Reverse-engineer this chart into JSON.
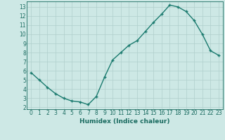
{
  "x": [
    0,
    1,
    2,
    3,
    4,
    5,
    6,
    7,
    8,
    9,
    10,
    11,
    12,
    13,
    14,
    15,
    16,
    17,
    18,
    19,
    20,
    21,
    22,
    23
  ],
  "y": [
    5.8,
    5.0,
    4.2,
    3.5,
    3.0,
    2.7,
    2.6,
    2.3,
    3.2,
    5.3,
    7.2,
    8.0,
    8.8,
    9.3,
    10.3,
    11.3,
    12.2,
    13.2,
    13.0,
    12.5,
    11.5,
    10.0,
    8.2,
    7.7
  ],
  "line_color": "#1a7a6e",
  "marker": "+",
  "bg_color": "#cde8e5",
  "grid_color": "#b0cfcc",
  "xlabel": "Humidex (Indice chaleur)",
  "xlim": [
    -0.5,
    23.5
  ],
  "ylim": [
    1.8,
    13.6
  ],
  "yticks": [
    2,
    3,
    4,
    5,
    6,
    7,
    8,
    9,
    10,
    11,
    12,
    13
  ],
  "xticks": [
    0,
    1,
    2,
    3,
    4,
    5,
    6,
    7,
    8,
    9,
    10,
    11,
    12,
    13,
    14,
    15,
    16,
    17,
    18,
    19,
    20,
    21,
    22,
    23
  ],
  "tick_color": "#1a6b60",
  "label_fontsize": 6.5,
  "tick_fontsize": 5.5,
  "marker_size": 3,
  "linewidth": 1.0
}
